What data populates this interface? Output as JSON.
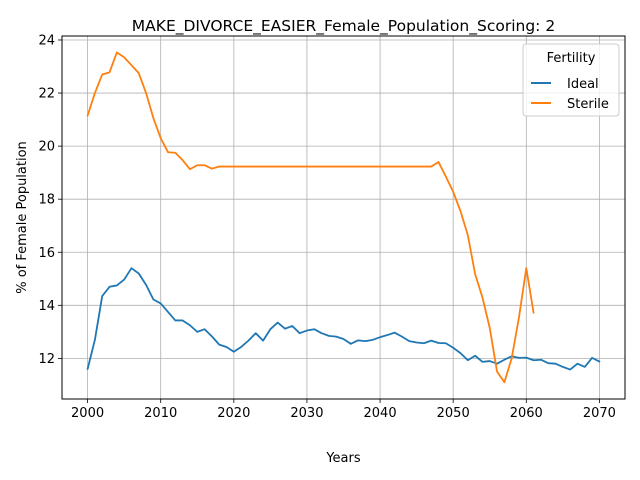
{
  "chart_data": {
    "type": "line",
    "title": "MAKE_DIVORCE_EASIER_Female_Population_Scoring: 2",
    "xlabel": "Years",
    "ylabel": "% of Female Population",
    "xlim": [
      1996.5,
      2073.5
    ],
    "ylim": [
      10.47,
      24.15
    ],
    "xticks": [
      2000,
      2010,
      2020,
      2030,
      2040,
      2050,
      2060,
      2070
    ],
    "yticks": [
      12,
      14,
      16,
      18,
      20,
      22,
      24
    ],
    "grid": true,
    "legend": {
      "title": "Fertility",
      "placement": "top-right"
    },
    "series": [
      {
        "name": "Ideal",
        "color": "#1f77b4",
        "x": [
          2000,
          2001,
          2002,
          2003,
          2004,
          2005,
          2006,
          2007,
          2008,
          2009,
          2010,
          2011,
          2012,
          2013,
          2014,
          2015,
          2016,
          2017,
          2018,
          2019,
          2020,
          2021,
          2022,
          2023,
          2024,
          2025,
          2026,
          2027,
          2028,
          2029,
          2030,
          2031,
          2032,
          2033,
          2034,
          2035,
          2036,
          2037,
          2038,
          2039,
          2040,
          2041,
          2042,
          2043,
          2044,
          2045,
          2046,
          2047,
          2048,
          2049,
          2050,
          2051,
          2052,
          2053,
          2054,
          2055,
          2056,
          2057,
          2058,
          2059,
          2060,
          2061,
          2062,
          2063,
          2064,
          2065,
          2066,
          2067,
          2068,
          2069,
          2070
        ],
        "values": [
          11.6,
          12.7,
          14.35,
          14.7,
          14.75,
          14.97,
          15.4,
          15.2,
          14.77,
          14.22,
          14.07,
          13.75,
          13.43,
          13.43,
          13.25,
          13.0,
          13.1,
          12.83,
          12.52,
          12.43,
          12.25,
          12.43,
          12.67,
          12.95,
          12.67,
          13.1,
          13.35,
          13.12,
          13.22,
          12.95,
          13.05,
          13.1,
          12.95,
          12.85,
          12.82,
          12.73,
          12.55,
          12.68,
          12.65,
          12.7,
          12.8,
          12.88,
          12.97,
          12.82,
          12.65,
          12.6,
          12.57,
          12.67,
          12.58,
          12.57,
          12.4,
          12.2,
          11.93,
          12.1,
          11.87,
          11.9,
          11.8,
          11.95,
          12.08,
          12.02,
          12.03,
          11.93,
          11.95,
          11.82,
          11.8,
          11.68,
          11.58,
          11.8,
          11.68,
          12.02,
          11.88
        ]
      },
      {
        "name": "Sterile",
        "color": "#ff7f0e",
        "x": [
          2000,
          2001,
          2002,
          2003,
          2004,
          2005,
          2006,
          2007,
          2008,
          2009,
          2010,
          2011,
          2012,
          2013,
          2014,
          2015,
          2016,
          2017,
          2018,
          2019,
          2020,
          2021,
          2022,
          2023,
          2024,
          2025,
          2026,
          2027,
          2028,
          2029,
          2030,
          2031,
          2032,
          2033,
          2034,
          2035,
          2036,
          2037,
          2038,
          2039,
          2040,
          2041,
          2042,
          2043,
          2044,
          2045,
          2046,
          2047,
          2048,
          2049,
          2050,
          2051,
          2052,
          2053,
          2054,
          2055,
          2056,
          2057,
          2058,
          2059,
          2060,
          2061
        ],
        "values": [
          21.15,
          22.0,
          22.7,
          22.78,
          23.53,
          23.35,
          23.05,
          22.75,
          22.0,
          21.05,
          20.3,
          19.77,
          19.75,
          19.47,
          19.13,
          19.28,
          19.28,
          19.15,
          19.23,
          19.23,
          19.23,
          19.23,
          19.23,
          19.23,
          19.23,
          19.23,
          19.23,
          19.23,
          19.23,
          19.23,
          19.23,
          19.23,
          19.23,
          19.23,
          19.23,
          19.23,
          19.23,
          19.23,
          19.23,
          19.23,
          19.23,
          19.23,
          19.23,
          19.23,
          19.23,
          19.23,
          19.23,
          19.23,
          19.4,
          18.85,
          18.28,
          17.55,
          16.65,
          15.18,
          14.3,
          13.15,
          11.5,
          11.1,
          12.0,
          13.55,
          15.4,
          13.72
        ]
      }
    ]
  }
}
